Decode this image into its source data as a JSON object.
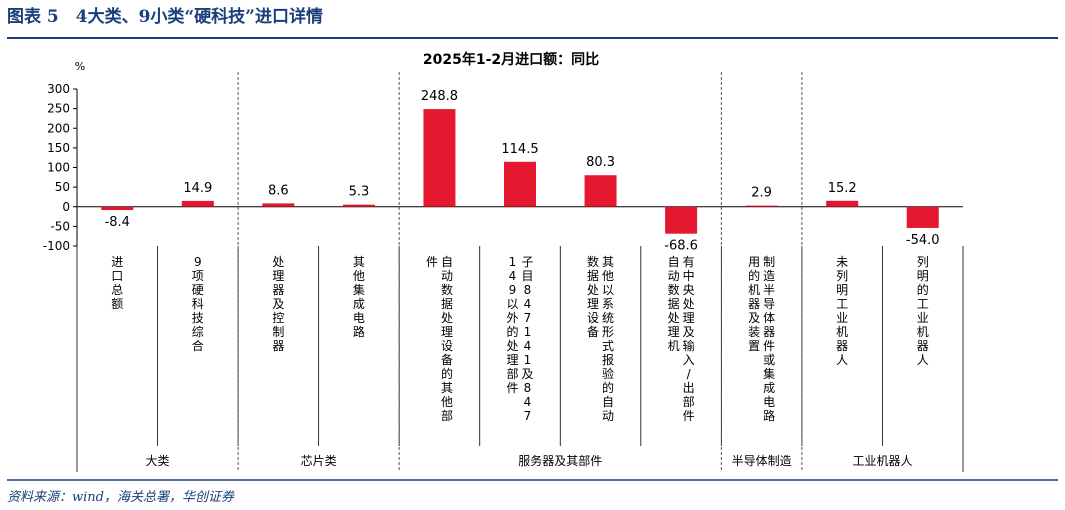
{
  "header": {
    "figure_title": "图表 5　4大类、9小类“硬科技”进口详情",
    "source": "资料来源：wind，海关总署，华创证券"
  },
  "chart_data": {
    "type": "bar",
    "title": "2025年1-2月进口额：同比",
    "ylabel": "%",
    "ylim": [
      -100,
      300
    ],
    "yticks": [
      -100,
      -50,
      0,
      50,
      100,
      150,
      200,
      250,
      300
    ],
    "grid": false,
    "bar_color": "#e3172d",
    "categories": [
      "进口总额",
      "9项硬科技综合",
      "处理器及控制器",
      "其他集成电路",
      "自动数据处理设备的其他部件",
      "子目847141及847149以外的处理部件",
      "其他以系统形式报验的自动数据处理设备",
      "有中央处理及输入/出部件自动数据处理机",
      "制造半导体器件或集成电路用的机器及装置",
      "未列明工业机器人",
      "列明的工业机器人"
    ],
    "values": [
      -8.4,
      14.9,
      8.6,
      5.3,
      248.8,
      114.5,
      80.3,
      -68.6,
      2.9,
      15.2,
      -54.0
    ],
    "value_labels": [
      "-8.4",
      "14.9",
      "8.6",
      "5.3",
      "248.8",
      "114.5",
      "80.3",
      "-68.6",
      "2.9",
      "15.2",
      "-54.0"
    ],
    "groups": [
      {
        "label": "大类",
        "span": [
          0,
          1
        ]
      },
      {
        "label": "芯片类",
        "span": [
          2,
          3
        ]
      },
      {
        "label": "服务器及其部件",
        "span": [
          4,
          7
        ]
      },
      {
        "label": "半导体制造",
        "span": [
          8,
          8
        ]
      },
      {
        "label": "工业机器人",
        "span": [
          9,
          10
        ]
      }
    ]
  }
}
